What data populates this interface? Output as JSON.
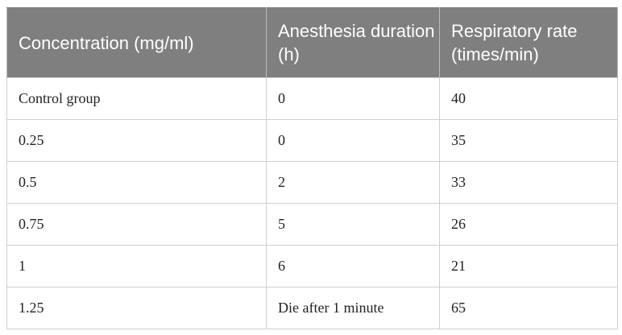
{
  "table": {
    "headers": [
      "Concentration (mg/ml)",
      "Anesthesia duration (h)",
      "Respiratory rate (times/min)"
    ],
    "rows": [
      [
        "Control group",
        "0",
        "40"
      ],
      [
        "0.25",
        "0",
        "35"
      ],
      [
        "0.5",
        "2",
        "33"
      ],
      [
        "0.75",
        "5",
        "26"
      ],
      [
        "1",
        "6",
        "21"
      ],
      [
        "1.25",
        "Die after 1 minute",
        "65"
      ]
    ]
  }
}
